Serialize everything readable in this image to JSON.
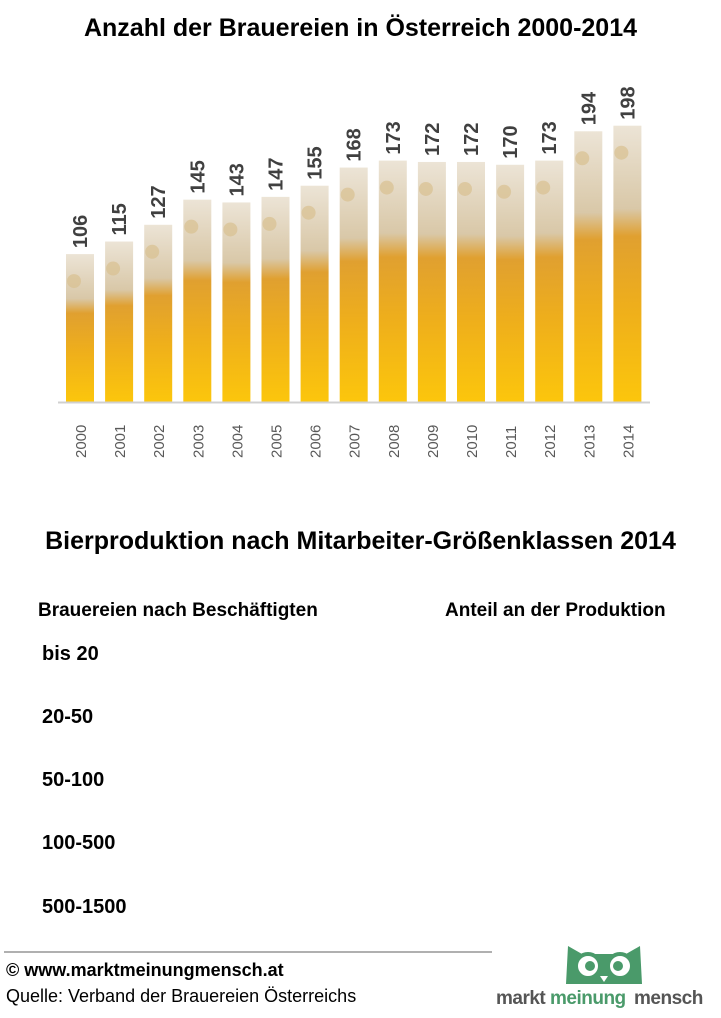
{
  "chart_data": {
    "type": "bar",
    "title": "Anzahl der Brauereien in Österreich 2000-2014",
    "categories": [
      "2000",
      "2001",
      "2002",
      "2003",
      "2004",
      "2005",
      "2006",
      "2007",
      "2008",
      "2009",
      "2010",
      "2011",
      "2012",
      "2013",
      "2014"
    ],
    "values": [
      106,
      115,
      127,
      145,
      143,
      147,
      155,
      168,
      173,
      172,
      172,
      170,
      173,
      194,
      198
    ],
    "ylim": [
      0,
      220
    ],
    "grid": false,
    "colors": {
      "foam": "#e6dcc9",
      "beer": "#f6bd0e",
      "beer_dark": "#e39a10",
      "label": "#404040",
      "axis": "#d0d0d0"
    }
  },
  "section2": {
    "title": "Bierproduktion nach Mitarbeiter-Größenklassen 2014",
    "col1_header": "Brauereien nach Beschäftigten",
    "col2_header": "Anteil an der Produktion",
    "classes": [
      "bis 20",
      "20-50",
      "50-100",
      "100-500",
      "500-1500"
    ]
  },
  "footer": {
    "copyright": "© www.marktmeinungmensch.at",
    "source": "Quelle: Verband der Brauereien Österreichs",
    "logo_text": [
      "markt",
      "meinung",
      "mensch"
    ],
    "logo_color": "#4a9a6a"
  }
}
